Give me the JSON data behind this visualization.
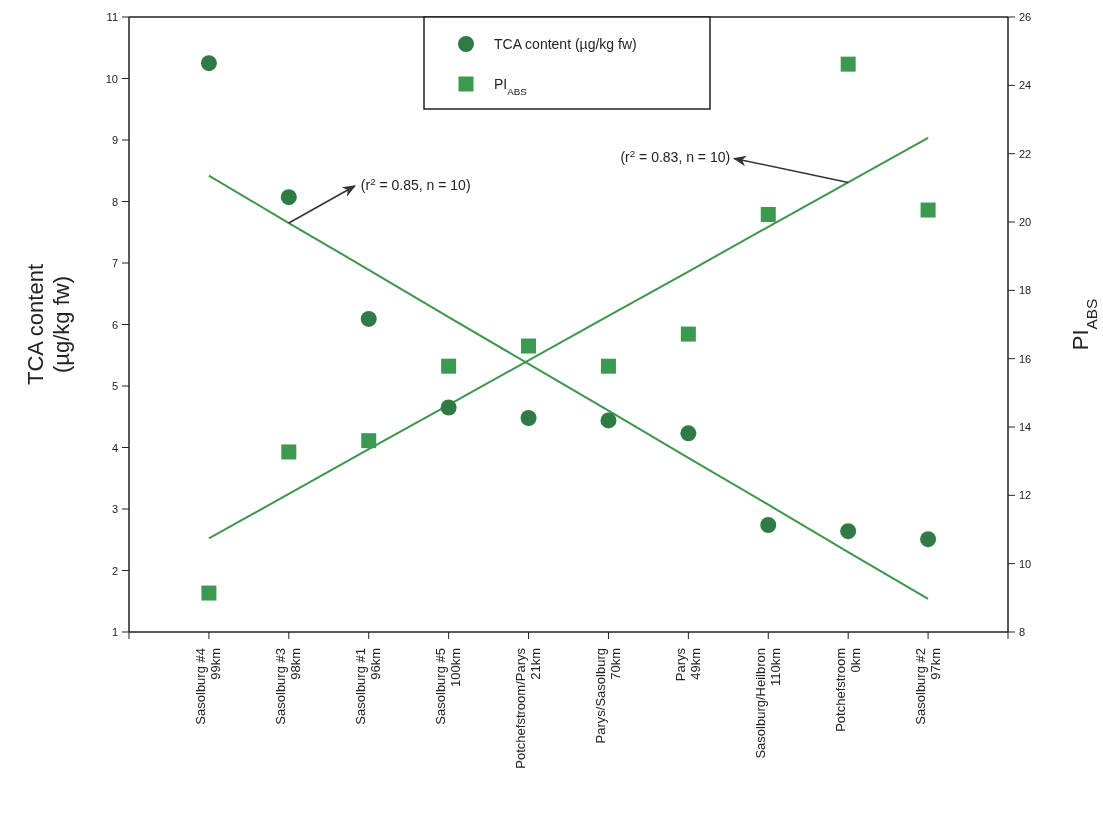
{
  "chart_data": {
    "type": "scatter",
    "ylabel": "TCA content\n(µg/kg fw)",
    "y2label": "PI$_{ABS}$",
    "categories": [
      "Sasolburg #4\n99km",
      "Sasolburg #3\n98km",
      "Sasolburg #1\n96km",
      "Sasolburg #5\n100km",
      "Potchefstroom/Parys\n21km",
      "Parys/Sasolburg\n70km",
      "Parys\n49km",
      "Sasolburg/Heilbron\n110km",
      "Potchefstroom\n0km",
      "Sasolburg #2\n97km"
    ],
    "ylim": [
      1,
      11
    ],
    "yticks": [
      1,
      2,
      3,
      4,
      5,
      6,
      7,
      8,
      9,
      10,
      11
    ],
    "y2lim": [
      8,
      26
    ],
    "y2ticks": [
      8,
      10,
      12,
      14,
      16,
      18,
      20,
      22,
      24,
      26
    ],
    "series": [
      {
        "name": "TCA content (µg/kg fw)",
        "marker": "circle",
        "color": "#2f7a45",
        "values": [
          10.25,
          8.07,
          6.09,
          4.65,
          4.48,
          4.44,
          4.23,
          2.74,
          2.64,
          2.51
        ]
      },
      {
        "name": "PI$_{ABS}$",
        "marker": "square",
        "axis": "y2",
        "color": "#3c9a50",
        "values": [
          9.14,
          13.27,
          13.6,
          15.78,
          16.37,
          15.78,
          16.72,
          20.22,
          24.62,
          20.35
        ]
      },
      {
        "type": "line",
        "marker": "none",
        "color": "#3f9450",
        "values": [
          8.42,
          7.65,
          6.89,
          6.12,
          5.36,
          4.6,
          3.83,
          3.07,
          2.3,
          1.54
        ]
      },
      {
        "type": "line",
        "marker": "none",
        "axis": "y2",
        "color": "#3f9450",
        "values": [
          10.74,
          12.04,
          13.35,
          14.65,
          15.95,
          17.25,
          18.55,
          19.86,
          21.16,
          22.46
        ]
      }
    ],
    "annotations": [
      {
        "text": "(r$^{2}$ = 0.85, n = 10)",
        "x": "Sasolburg #3\n98km",
        "y": 7.65
      },
      {
        "text": "(r$^{2}$ = 0.83, n = 10)",
        "x": "Potchefstroom\n0km",
        "y": 8.31
      }
    ],
    "legend": "top"
  }
}
